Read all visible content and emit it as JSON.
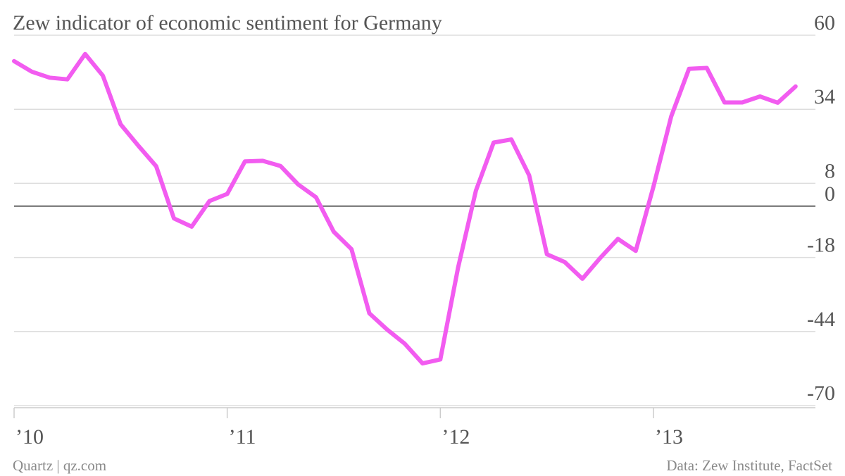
{
  "chart_data": {
    "type": "line",
    "title": "Zew indicator of economic sentiment for Germany",
    "xlabel": "",
    "ylabel": "",
    "ylim": [
      -70,
      60
    ],
    "y_ticks": [
      60,
      34,
      8,
      0,
      -18,
      -44,
      -70
    ],
    "x_ticks": [
      {
        "label": "’10",
        "value": 2010.0
      },
      {
        "label": "’11",
        "value": 2011.0
      },
      {
        "label": "’12",
        "value": 2012.0
      },
      {
        "label": "’13",
        "value": 2013.0
      }
    ],
    "xlim": [
      2010.0,
      2013.75
    ],
    "grid": true,
    "y_axis_position": "right",
    "line_color": "#f25cf0",
    "series": [
      {
        "x": [
          2010.0,
          2010.0833,
          2010.1667,
          2010.25,
          2010.3333,
          2010.4167,
          2010.5,
          2010.5833,
          2010.6667,
          2010.75,
          2010.8333,
          2010.9167,
          2011.0,
          2011.0833,
          2011.1667,
          2011.25,
          2011.3333,
          2011.4167,
          2011.5,
          2011.5833,
          2011.6667,
          2011.75,
          2011.8333,
          2011.9167,
          2012.0,
          2012.0833,
          2012.1667,
          2012.25,
          2012.3333,
          2012.4167,
          2012.5,
          2012.5833,
          2012.6667,
          2012.75,
          2012.8333,
          2012.9167,
          2013.0,
          2013.0833,
          2013.1667,
          2013.25,
          2013.3333,
          2013.4167,
          2013.5,
          2013.5833,
          2013.6667
        ],
        "values": [
          50.9,
          47.2,
          45.1,
          44.5,
          53.4,
          45.8,
          28.7,
          21.2,
          14.0,
          -4.3,
          -7.2,
          1.8,
          4.3,
          15.7,
          15.9,
          14.1,
          7.6,
          3.1,
          -9.0,
          -15.1,
          -37.6,
          -43.3,
          -48.3,
          -55.2,
          -53.8,
          -21.6,
          5.4,
          22.3,
          23.4,
          10.8,
          -16.9,
          -19.6,
          -25.5,
          -18.2,
          -11.5,
          -15.7,
          6.9,
          31.5,
          48.2,
          48.5,
          36.4,
          36.4,
          38.5,
          36.3,
          42.0
        ]
      }
    ]
  },
  "footer": {
    "source_left": "Quartz | qz.com",
    "source_right": "Data: Zew Institute, FactSet"
  }
}
